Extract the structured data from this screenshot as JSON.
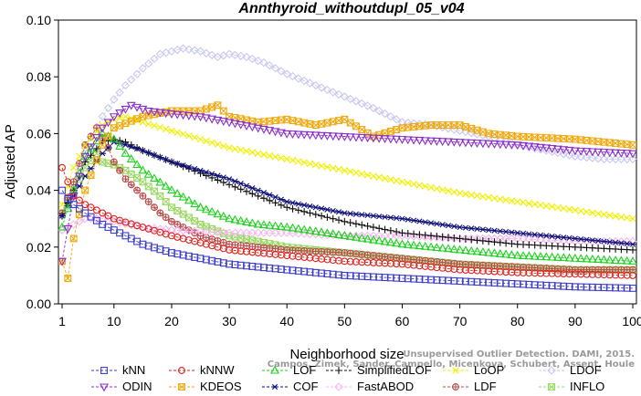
{
  "chart_data": {
    "type": "line",
    "title": "Annthyroid_withoutdupl_05_v04",
    "xlabel": "Neighborhood size",
    "ylabel": "Adjusted AP",
    "xlim": [
      1,
      100
    ],
    "ylim": [
      0,
      0.1
    ],
    "xticks": [
      1,
      10,
      20,
      30,
      40,
      50,
      60,
      70,
      80,
      90,
      100
    ],
    "yticks": [
      0,
      0.02,
      0.04,
      0.06,
      0.08,
      0.1
    ],
    "ytick_labels": [
      "0.00",
      "0.02",
      "0.04",
      "0.06",
      "0.08",
      "0.10"
    ],
    "grid": false,
    "legend_placement": "bottom",
    "series": [
      {
        "name": "kNN",
        "color": "#3c3cc8",
        "marker": "square",
        "points": [
          [
            1,
            0.04
          ],
          [
            2,
            0.037
          ],
          [
            3,
            0.035
          ],
          [
            5,
            0.032
          ],
          [
            8,
            0.028
          ],
          [
            10,
            0.026
          ],
          [
            15,
            0.021
          ],
          [
            20,
            0.018
          ],
          [
            30,
            0.014
          ],
          [
            40,
            0.012
          ],
          [
            50,
            0.01
          ],
          [
            60,
            0.009
          ],
          [
            70,
            0.008
          ],
          [
            80,
            0.007
          ],
          [
            90,
            0.006
          ],
          [
            100,
            0.0055
          ]
        ]
      },
      {
        "name": "ODIN",
        "color": "#8b2fc9",
        "marker": "triangle-down",
        "points": [
          [
            1,
            0.015
          ],
          [
            3,
            0.038
          ],
          [
            5,
            0.052
          ],
          [
            8,
            0.062
          ],
          [
            10,
            0.066
          ],
          [
            13,
            0.07
          ],
          [
            16,
            0.068
          ],
          [
            20,
            0.067
          ],
          [
            25,
            0.066
          ],
          [
            30,
            0.064
          ],
          [
            35,
            0.062
          ],
          [
            40,
            0.06
          ],
          [
            50,
            0.059
          ],
          [
            60,
            0.058
          ],
          [
            70,
            0.057
          ],
          [
            80,
            0.056
          ],
          [
            90,
            0.054
          ],
          [
            100,
            0.053
          ]
        ]
      },
      {
        "name": "kNNW",
        "color": "#e0201c",
        "marker": "circle",
        "points": [
          [
            1,
            0.048
          ],
          [
            2,
            0.043
          ],
          [
            3,
            0.038
          ],
          [
            5,
            0.035
          ],
          [
            8,
            0.032
          ],
          [
            10,
            0.03
          ],
          [
            15,
            0.027
          ],
          [
            20,
            0.024
          ],
          [
            30,
            0.019
          ],
          [
            40,
            0.017
          ],
          [
            50,
            0.015
          ],
          [
            60,
            0.014
          ],
          [
            70,
            0.012
          ],
          [
            80,
            0.011
          ],
          [
            90,
            0.0105
          ],
          [
            100,
            0.01
          ]
        ]
      },
      {
        "name": "KDEOS",
        "color": "#f0a80c",
        "marker": "square-x",
        "points": [
          [
            1,
            0.015
          ],
          [
            2,
            0.009
          ],
          [
            3,
            0.023
          ],
          [
            5,
            0.04
          ],
          [
            8,
            0.056
          ],
          [
            10,
            0.062
          ],
          [
            15,
            0.066
          ],
          [
            20,
            0.068
          ],
          [
            25,
            0.068
          ],
          [
            28,
            0.07
          ],
          [
            30,
            0.066
          ],
          [
            35,
            0.064
          ],
          [
            40,
            0.065
          ],
          [
            45,
            0.063
          ],
          [
            50,
            0.065
          ],
          [
            55,
            0.059
          ],
          [
            60,
            0.062
          ],
          [
            65,
            0.063
          ],
          [
            70,
            0.063
          ],
          [
            75,
            0.06
          ],
          [
            80,
            0.059
          ],
          [
            90,
            0.058
          ],
          [
            100,
            0.056
          ]
        ]
      },
      {
        "name": "LOF",
        "color": "#1ed21e",
        "marker": "triangle",
        "points": [
          [
            1,
            0.027
          ],
          [
            3,
            0.04
          ],
          [
            5,
            0.052
          ],
          [
            8,
            0.06
          ],
          [
            10,
            0.058
          ],
          [
            12,
            0.053
          ],
          [
            15,
            0.047
          ],
          [
            20,
            0.04
          ],
          [
            25,
            0.034
          ],
          [
            30,
            0.03
          ],
          [
            35,
            0.028
          ],
          [
            40,
            0.027
          ],
          [
            50,
            0.024
          ],
          [
            60,
            0.021
          ],
          [
            70,
            0.019
          ],
          [
            80,
            0.017
          ],
          [
            90,
            0.016
          ],
          [
            100,
            0.015
          ]
        ]
      },
      {
        "name": "COF",
        "color": "#10107a",
        "marker": "asterisk",
        "points": [
          [
            1,
            0.031
          ],
          [
            3,
            0.038
          ],
          [
            5,
            0.045
          ],
          [
            8,
            0.053
          ],
          [
            10,
            0.057
          ],
          [
            12,
            0.056
          ],
          [
            15,
            0.054
          ],
          [
            20,
            0.05
          ],
          [
            25,
            0.047
          ],
          [
            30,
            0.044
          ],
          [
            35,
            0.04
          ],
          [
            40,
            0.036
          ],
          [
            50,
            0.032
          ],
          [
            60,
            0.03
          ],
          [
            70,
            0.027
          ],
          [
            80,
            0.025
          ],
          [
            90,
            0.023
          ],
          [
            100,
            0.021
          ]
        ]
      },
      {
        "name": "SimplifiedLOF",
        "color": "#111111",
        "marker": "plus",
        "points": [
          [
            1,
            0.031
          ],
          [
            3,
            0.04
          ],
          [
            5,
            0.05
          ],
          [
            8,
            0.057
          ],
          [
            10,
            0.058
          ],
          [
            12,
            0.057
          ],
          [
            15,
            0.054
          ],
          [
            20,
            0.05
          ],
          [
            25,
            0.046
          ],
          [
            30,
            0.042
          ],
          [
            35,
            0.038
          ],
          [
            40,
            0.034
          ],
          [
            50,
            0.029
          ],
          [
            60,
            0.025
          ],
          [
            70,
            0.023
          ],
          [
            80,
            0.021
          ],
          [
            90,
            0.02
          ],
          [
            100,
            0.019
          ]
        ]
      },
      {
        "name": "FastABOD",
        "color": "#f4b8f0",
        "marker": "diamond",
        "points": [
          [
            1,
            0.026
          ],
          [
            3,
            0.028
          ],
          [
            5,
            0.03
          ],
          [
            8,
            0.03
          ],
          [
            10,
            0.029
          ],
          [
            15,
            0.027
          ],
          [
            20,
            0.026
          ],
          [
            30,
            0.025
          ],
          [
            40,
            0.025
          ],
          [
            50,
            0.024
          ],
          [
            60,
            0.024
          ],
          [
            70,
            0.023
          ],
          [
            80,
            0.023
          ],
          [
            90,
            0.022
          ],
          [
            100,
            0.022
          ]
        ]
      },
      {
        "name": "LoOP",
        "color": "#f0f000",
        "marker": "x",
        "points": [
          [
            1,
            0.035
          ],
          [
            3,
            0.048
          ],
          [
            5,
            0.056
          ],
          [
            8,
            0.063
          ],
          [
            10,
            0.065
          ],
          [
            12,
            0.066
          ],
          [
            15,
            0.064
          ],
          [
            20,
            0.061
          ],
          [
            25,
            0.058
          ],
          [
            30,
            0.055
          ],
          [
            40,
            0.051
          ],
          [
            50,
            0.047
          ],
          [
            60,
            0.043
          ],
          [
            70,
            0.039
          ],
          [
            80,
            0.036
          ],
          [
            90,
            0.033
          ],
          [
            100,
            0.03
          ]
        ]
      },
      {
        "name": "LDF",
        "color": "#b84a4a",
        "marker": "circle-plus",
        "points": [
          [
            1,
            0.032
          ],
          [
            3,
            0.043
          ],
          [
            5,
            0.056
          ],
          [
            7,
            0.062
          ],
          [
            9,
            0.055
          ],
          [
            10,
            0.05
          ],
          [
            12,
            0.044
          ],
          [
            15,
            0.038
          ],
          [
            18,
            0.032
          ],
          [
            20,
            0.029
          ],
          [
            25,
            0.024
          ],
          [
            30,
            0.021
          ],
          [
            40,
            0.019
          ],
          [
            50,
            0.018
          ],
          [
            60,
            0.016
          ],
          [
            70,
            0.014
          ],
          [
            80,
            0.013
          ],
          [
            90,
            0.012
          ],
          [
            100,
            0.012
          ]
        ]
      },
      {
        "name": "LDOF",
        "color": "#c8c8f0",
        "marker": "diamond",
        "points": [
          [
            1,
            0.031
          ],
          [
            3,
            0.042
          ],
          [
            5,
            0.055
          ],
          [
            8,
            0.066
          ],
          [
            10,
            0.072
          ],
          [
            12,
            0.077
          ],
          [
            15,
            0.083
          ],
          [
            18,
            0.088
          ],
          [
            20,
            0.089
          ],
          [
            22,
            0.09
          ],
          [
            25,
            0.089
          ],
          [
            28,
            0.087
          ],
          [
            30,
            0.088
          ],
          [
            33,
            0.087
          ],
          [
            36,
            0.085
          ],
          [
            40,
            0.081
          ],
          [
            45,
            0.077
          ],
          [
            50,
            0.073
          ],
          [
            55,
            0.069
          ],
          [
            60,
            0.064
          ],
          [
            65,
            0.063
          ],
          [
            70,
            0.061
          ],
          [
            75,
            0.059
          ],
          [
            80,
            0.056
          ],
          [
            85,
            0.054
          ],
          [
            90,
            0.052
          ],
          [
            95,
            0.051
          ],
          [
            100,
            0.051
          ]
        ]
      },
      {
        "name": "INFLO",
        "color": "#98d860",
        "marker": "square-x",
        "points": [
          [
            1,
            0.032
          ],
          [
            3,
            0.04
          ],
          [
            5,
            0.048
          ],
          [
            7,
            0.053
          ],
          [
            8,
            0.05
          ],
          [
            10,
            0.049
          ],
          [
            12,
            0.047
          ],
          [
            15,
            0.043
          ],
          [
            18,
            0.038
          ],
          [
            20,
            0.034
          ],
          [
            25,
            0.028
          ],
          [
            30,
            0.024
          ],
          [
            40,
            0.02
          ],
          [
            50,
            0.018
          ],
          [
            60,
            0.016
          ],
          [
            70,
            0.014
          ],
          [
            80,
            0.013
          ],
          [
            90,
            0.012
          ],
          [
            100,
            0.012
          ]
        ]
      }
    ]
  },
  "watermark": {
    "line1": "Unsupervised Outlier Detection. DAMI, 2015.",
    "line2": "Campos, Zimek, Sander, Campello, Micenkova, Schubert, Assent, Houle"
  }
}
